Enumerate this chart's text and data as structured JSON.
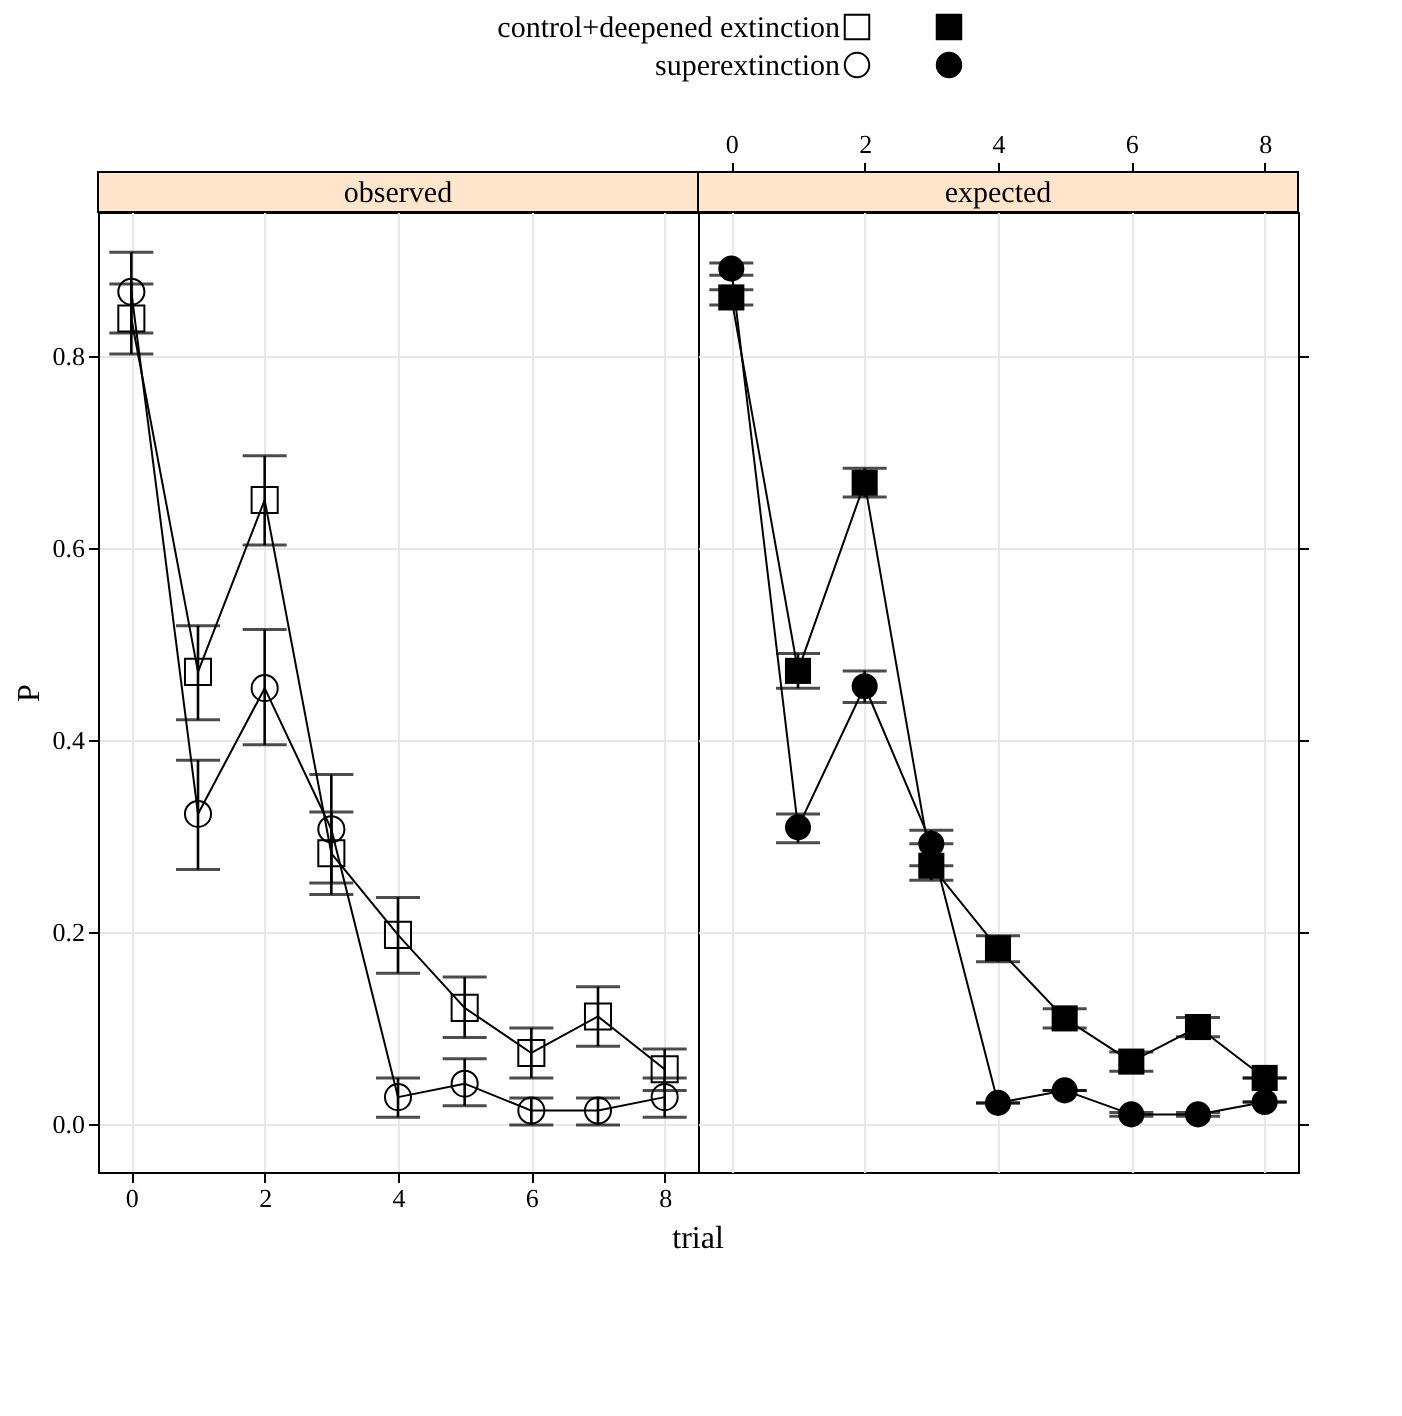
{
  "chart_data": [
    {
      "type": "line",
      "title": "observed",
      "xlabel": "trial",
      "ylabel": "P",
      "legend": "top",
      "grid": true,
      "x": [
        0,
        1,
        2,
        3,
        4,
        5,
        6,
        7,
        8
      ],
      "xlim": [
        -0.5,
        8.5
      ],
      "xticks": [
        0,
        2,
        4,
        6,
        8
      ],
      "ylim": [
        -0.05,
        0.95
      ],
      "yticks": [
        {
          "value": 0,
          "label": "0.0"
        },
        {
          "value": 0.2,
          "label": "0.2"
        },
        {
          "value": 0.4,
          "label": "0.4"
        },
        {
          "value": 0.6,
          "label": "0.6"
        },
        {
          "value": 0.8,
          "label": "0.8"
        }
      ],
      "series": [
        {
          "name": "control+deepened extinction",
          "color": "#000000",
          "marker": "square",
          "values": [
            0.839,
            0.471,
            0.65,
            0.282,
            0.197,
            0.121,
            0.074,
            0.112,
            0.057
          ],
          "errors": [
            [
              0.802,
              0.875
            ],
            [
              0.421,
              0.519
            ],
            [
              0.603,
              0.696
            ],
            [
              0.239,
              0.325
            ],
            [
              0.157,
              0.236
            ],
            [
              0.09,
              0.153
            ],
            [
              0.048,
              0.1
            ],
            [
              0.081,
              0.143
            ],
            [
              0.035,
              0.078
            ]
          ]
        },
        {
          "name": "superextinction",
          "color": "#000000",
          "marker": "circle",
          "values": [
            0.867,
            0.323,
            0.454,
            0.307,
            0.028,
            0.042,
            0.014,
            0.014,
            0.028
          ],
          "errors": [
            [
              0.824,
              0.908
            ],
            [
              0.265,
              0.379
            ],
            [
              0.395,
              0.515
            ],
            [
              0.251,
              0.364
            ],
            [
              0.007,
              0.048
            ],
            [
              0.019,
              0.068
            ],
            [
              -0.001,
              0.027
            ],
            [
              -0.001,
              0.027
            ],
            [
              0.007,
              0.048
            ]
          ]
        }
      ]
    },
    {
      "type": "line",
      "title": "expected",
      "grid": true,
      "tick_labels": "x",
      "x": [
        0,
        1,
        2,
        3,
        4,
        5,
        6,
        7,
        8
      ],
      "xlim": [
        -0.5,
        8.5
      ],
      "xticks": [
        0,
        2,
        4,
        6,
        8
      ],
      "ylim": [
        -0.05,
        0.95
      ],
      "yticks": [
        {
          "value": 0,
          "label": null
        },
        {
          "value": 0.2,
          "label": null
        },
        {
          "value": 0.4,
          "label": null
        },
        {
          "value": 0.6,
          "label": null
        },
        {
          "value": 0.8,
          "label": null
        }
      ],
      "series": [
        {
          "color": "#000000",
          "marker": "square",
          "values": [
            0.861,
            0.472,
            0.668,
            0.269,
            0.183,
            0.11,
            0.065,
            0.101,
            0.048
          ],
          "errors": [
            [
              0.853,
              0.869
            ],
            [
              0.454,
              0.49
            ],
            [
              0.653,
              0.683
            ],
            [
              0.254,
              0.269
            ],
            [
              0.169,
              0.196
            ],
            [
              0.1,
              0.12
            ],
            [
              0.055,
              0.075
            ],
            [
              0.091,
              0.111
            ],
            [
              0.048,
              0.048
            ]
          ]
        },
        {
          "color": "#000000",
          "marker": "circle",
          "values": [
            0.891,
            0.309,
            0.456,
            0.292,
            0.022,
            0.035,
            0.01,
            0.01,
            0.023
          ],
          "errors": [
            [
              0.884,
              0.897
            ],
            [
              0.293,
              0.323
            ],
            [
              0.439,
              0.472
            ],
            [
              0.292,
              0.306
            ],
            [
              0.022,
              0.022
            ],
            [
              0.035,
              0.035
            ],
            [
              0.008,
              0.012
            ],
            [
              0.008,
              0.012
            ],
            [
              0.023,
              0.023
            ]
          ]
        }
      ]
    }
  ]
}
